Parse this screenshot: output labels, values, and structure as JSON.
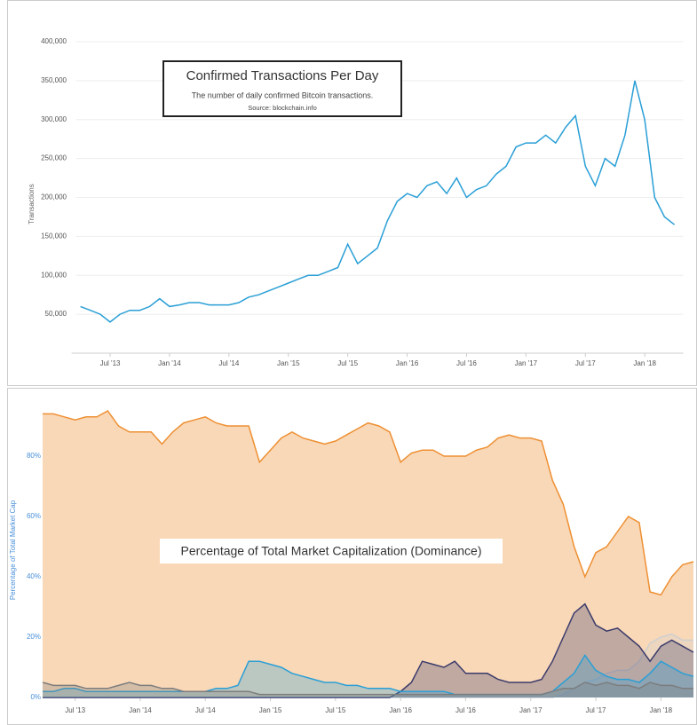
{
  "chart_data": [
    {
      "type": "line",
      "title": "Confirmed Transactions Per Day",
      "subtitle": "The number of daily confirmed Bitcoin transactions.",
      "source": "Source: blockchain.info",
      "y_label": "Transactions",
      "grid": true,
      "x": [
        "2013-04",
        "2013-05",
        "2013-06",
        "2013-07",
        "2013-08",
        "2013-09",
        "2013-10",
        "2013-11",
        "2013-12",
        "2014-01",
        "2014-02",
        "2014-03",
        "2014-04",
        "2014-05",
        "2014-06",
        "2014-07",
        "2014-08",
        "2014-09",
        "2014-10",
        "2014-11",
        "2014-12",
        "2015-01",
        "2015-02",
        "2015-03",
        "2015-04",
        "2015-05",
        "2015-06",
        "2015-07",
        "2015-08",
        "2015-09",
        "2015-10",
        "2015-11",
        "2015-12",
        "2016-01",
        "2016-02",
        "2016-03",
        "2016-04",
        "2016-05",
        "2016-06",
        "2016-07",
        "2016-08",
        "2016-09",
        "2016-10",
        "2016-11",
        "2016-12",
        "2017-01",
        "2017-02",
        "2017-03",
        "2017-04",
        "2017-05",
        "2017-06",
        "2017-07",
        "2017-08",
        "2017-09",
        "2017-10",
        "2017-11",
        "2017-12",
        "2018-01",
        "2018-02",
        "2018-03",
        "2018-04"
      ],
      "xlim": [
        "2013-04",
        "2018-04"
      ],
      "xticks": [
        {
          "value": "2013-07",
          "label": "Jul '13"
        },
        {
          "value": "2014-01",
          "label": "Jan '14"
        },
        {
          "value": "2014-07",
          "label": "Jul '14"
        },
        {
          "value": "2015-01",
          "label": "Jan '15"
        },
        {
          "value": "2015-07",
          "label": "Jul '15"
        },
        {
          "value": "2016-01",
          "label": "Jan '16"
        },
        {
          "value": "2016-07",
          "label": "Jul '16"
        },
        {
          "value": "2017-01",
          "label": "Jan '17"
        },
        {
          "value": "2017-07",
          "label": "Jul '17"
        },
        {
          "value": "2018-01",
          "label": "Jan '18"
        }
      ],
      "ylim": [
        0,
        400000
      ],
      "yticks": [
        {
          "value": 50000,
          "label": "50,000"
        },
        {
          "value": 100000,
          "label": "100,000"
        },
        {
          "value": 150000,
          "label": "150,000"
        },
        {
          "value": 200000,
          "label": "200,000"
        },
        {
          "value": 250000,
          "label": "250,000"
        },
        {
          "value": 300000,
          "label": "300,000"
        },
        {
          "value": 350000,
          "label": "350,000"
        },
        {
          "value": 400000,
          "label": "400,000"
        }
      ],
      "series": [
        {
          "color": "#2a9fd6",
          "values": [
            60000,
            55000,
            50000,
            40000,
            50000,
            55000,
            55000,
            60000,
            70000,
            60000,
            62000,
            65000,
            65000,
            62000,
            62000,
            62000,
            65000,
            72000,
            75000,
            80000,
            85000,
            90000,
            95000,
            100000,
            100000,
            105000,
            110000,
            140000,
            115000,
            125000,
            135000,
            170000,
            195000,
            205000,
            200000,
            215000,
            220000,
            205000,
            225000,
            200000,
            210000,
            215000,
            230000,
            240000,
            265000,
            270000,
            270000,
            280000,
            270000,
            290000,
            305000,
            240000,
            215000,
            250000,
            240000,
            280000,
            350000,
            300000,
            200000,
            175000,
            165000
          ]
        }
      ]
    },
    {
      "type": "area",
      "title": "Percentage of Total Market Capitalization (Dominance)",
      "y_label": "Percentage of Total Market Cap",
      "grid": false,
      "x": [
        "2013-04",
        "2013-05",
        "2013-06",
        "2013-07",
        "2013-08",
        "2013-09",
        "2013-10",
        "2013-11",
        "2013-12",
        "2014-01",
        "2014-02",
        "2014-03",
        "2014-04",
        "2014-05",
        "2014-06",
        "2014-07",
        "2014-08",
        "2014-09",
        "2014-10",
        "2014-11",
        "2014-12",
        "2015-01",
        "2015-02",
        "2015-03",
        "2015-04",
        "2015-05",
        "2015-06",
        "2015-07",
        "2015-08",
        "2015-09",
        "2015-10",
        "2015-11",
        "2015-12",
        "2016-01",
        "2016-02",
        "2016-03",
        "2016-04",
        "2016-05",
        "2016-06",
        "2016-07",
        "2016-08",
        "2016-09",
        "2016-10",
        "2016-11",
        "2016-12",
        "2017-01",
        "2017-02",
        "2017-03",
        "2017-04",
        "2017-05",
        "2017-06",
        "2017-07",
        "2017-08",
        "2017-09",
        "2017-10",
        "2017-11",
        "2017-12",
        "2018-01",
        "2018-02",
        "2018-03",
        "2018-04"
      ],
      "xlim": [
        "2013-04",
        "2018-04"
      ],
      "xticks": [
        {
          "value": "2013-07",
          "label": "Jul '13"
        },
        {
          "value": "2014-01",
          "label": "Jan '14"
        },
        {
          "value": "2014-07",
          "label": "Jul '14"
        },
        {
          "value": "2015-01",
          "label": "Jan '15"
        },
        {
          "value": "2015-07",
          "label": "Jul '15"
        },
        {
          "value": "2016-01",
          "label": "Jan '16"
        },
        {
          "value": "2016-07",
          "label": "Jul '16"
        },
        {
          "value": "2017-01",
          "label": "Jan '17"
        },
        {
          "value": "2017-07",
          "label": "Jul '17"
        },
        {
          "value": "2018-01",
          "label": "Jan '18"
        }
      ],
      "ylim": [
        0,
        100
      ],
      "yticks": [
        {
          "value": 0,
          "label": "0%"
        },
        {
          "value": 20,
          "label": "20%"
        },
        {
          "value": 40,
          "label": "40%"
        },
        {
          "value": 60,
          "label": "60%"
        },
        {
          "value": 80,
          "label": "80%"
        }
      ],
      "series": [
        {
          "color": "#ee9033",
          "values": [
            94,
            94,
            93,
            92,
            93,
            93,
            95,
            90,
            88,
            88,
            88,
            84,
            88,
            91,
            92,
            93,
            91,
            90,
            90,
            90,
            78,
            82,
            86,
            88,
            86,
            85,
            84,
            85,
            87,
            89,
            91,
            90,
            88,
            78,
            81,
            82,
            82,
            80,
            80,
            80,
            82,
            83,
            86,
            87,
            86,
            86,
            85,
            72,
            64,
            50,
            40,
            48,
            50,
            55,
            60,
            58,
            35,
            34,
            40,
            44,
            45
          ]
        },
        {
          "color": "#cfcfcf",
          "values": [
            0,
            0,
            0,
            0,
            0,
            0,
            0,
            0,
            0,
            0,
            0,
            0,
            0,
            0,
            0,
            0,
            0,
            0,
            0,
            0,
            0,
            0,
            0,
            0,
            0,
            0,
            0,
            0,
            0,
            0,
            0,
            0,
            0,
            0,
            0,
            0,
            0,
            0,
            0,
            0,
            0,
            0,
            0,
            0,
            0,
            0,
            0,
            0,
            1,
            3,
            5,
            6,
            8,
            9,
            9,
            12,
            18,
            20,
            21,
            19,
            19
          ]
        },
        {
          "color": "#3b3b6b",
          "values": [
            0,
            0,
            0,
            0,
            0,
            0,
            0,
            0,
            0,
            0,
            0,
            0,
            0,
            0,
            0,
            0,
            0,
            0,
            0,
            0,
            0,
            0,
            0,
            0,
            0,
            0,
            0,
            0,
            0,
            0,
            0,
            0,
            0,
            2,
            5,
            12,
            11,
            10,
            12,
            8,
            8,
            8,
            6,
            5,
            5,
            5,
            6,
            12,
            20,
            28,
            31,
            24,
            22,
            23,
            20,
            17,
            12,
            17,
            19,
            17,
            15
          ]
        },
        {
          "color": "#2a9fd6",
          "values": [
            2,
            2,
            3,
            3,
            2,
            2,
            2,
            2,
            2,
            2,
            2,
            2,
            2,
            2,
            2,
            2,
            3,
            3,
            4,
            12,
            12,
            11,
            10,
            8,
            7,
            6,
            5,
            5,
            4,
            4,
            3,
            3,
            3,
            2,
            2,
            2,
            2,
            2,
            1,
            1,
            1,
            1,
            1,
            1,
            1,
            1,
            1,
            2,
            5,
            8,
            14,
            9,
            7,
            6,
            6,
            5,
            8,
            12,
            10,
            8,
            7
          ]
        },
        {
          "color": "#7d7d7d",
          "values": [
            5,
            4,
            4,
            4,
            3,
            3,
            3,
            4,
            5,
            4,
            4,
            3,
            3,
            2,
            2,
            2,
            2,
            2,
            2,
            2,
            1,
            1,
            1,
            1,
            1,
            1,
            1,
            1,
            1,
            1,
            1,
            1,
            1,
            1,
            1,
            1,
            1,
            1,
            1,
            1,
            1,
            1,
            1,
            1,
            1,
            1,
            1,
            2,
            3,
            3,
            5,
            4,
            5,
            4,
            4,
            3,
            5,
            4,
            4,
            3,
            3
          ]
        }
      ]
    }
  ]
}
